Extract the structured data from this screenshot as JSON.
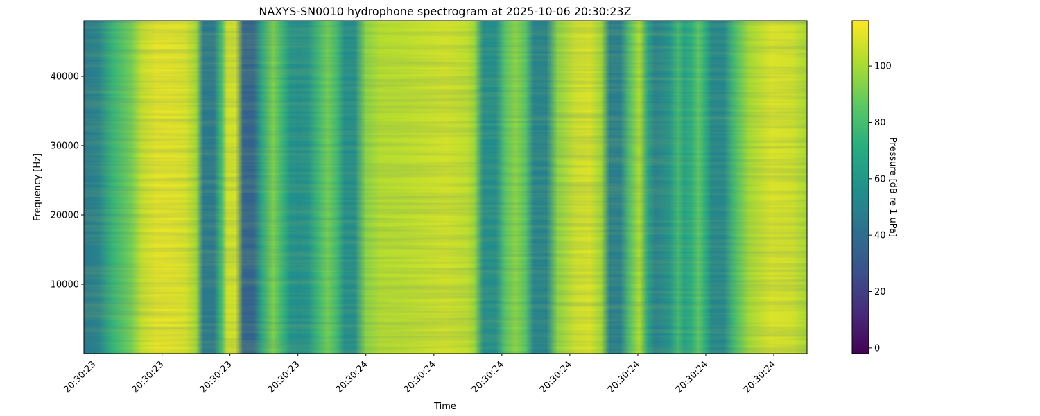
{
  "chart_data": {
    "type": "heatmap",
    "title": "NAXYS-SN0010 hydrophone spectrogram at 2025-10-06 20:30:23Z",
    "xlabel": "Time",
    "ylabel": "Frequency [Hz]",
    "colorbar_label": "Pressure [dB re 1 uPa]",
    "colormap": "viridis",
    "ylim": [
      0,
      48000
    ],
    "clim": [
      -2,
      116
    ],
    "x_tick_labels": [
      "20:30:23",
      "20:30:23",
      "20:30:23",
      "20:30:23",
      "20:30:24",
      "20:30:24",
      "20:30:24",
      "20:30:24",
      "20:30:24",
      "20:30:24",
      "20:30:24"
    ],
    "x_tick_fractions": [
      0.014,
      0.108,
      0.202,
      0.296,
      0.39,
      0.484,
      0.578,
      0.672,
      0.766,
      0.86,
      0.954
    ],
    "y_ticks": [
      10000,
      20000,
      30000,
      40000
    ],
    "y_tick_labels": [
      "10000",
      "20000",
      "30000",
      "40000"
    ],
    "colorbar_ticks": [
      0,
      20,
      40,
      60,
      80,
      100
    ],
    "colorbar_tick_labels": [
      "0",
      "20",
      "40",
      "60",
      "80",
      "100"
    ],
    "time_profile": [
      [
        0.0,
        45
      ],
      [
        0.02,
        50
      ],
      [
        0.04,
        75
      ],
      [
        0.065,
        90
      ],
      [
        0.08,
        106
      ],
      [
        0.1,
        112
      ],
      [
        0.12,
        112
      ],
      [
        0.14,
        110
      ],
      [
        0.155,
        100
      ],
      [
        0.165,
        45
      ],
      [
        0.18,
        45
      ],
      [
        0.19,
        78
      ],
      [
        0.198,
        108
      ],
      [
        0.21,
        108
      ],
      [
        0.22,
        35
      ],
      [
        0.235,
        35
      ],
      [
        0.245,
        65
      ],
      [
        0.262,
        92
      ],
      [
        0.275,
        75
      ],
      [
        0.285,
        58
      ],
      [
        0.297,
        55
      ],
      [
        0.31,
        58
      ],
      [
        0.325,
        78
      ],
      [
        0.337,
        90
      ],
      [
        0.35,
        78
      ],
      [
        0.36,
        55
      ],
      [
        0.375,
        55
      ],
      [
        0.39,
        95
      ],
      [
        0.41,
        103
      ],
      [
        0.44,
        104
      ],
      [
        0.47,
        106
      ],
      [
        0.5,
        108
      ],
      [
        0.53,
        105
      ],
      [
        0.54,
        98
      ],
      [
        0.552,
        55
      ],
      [
        0.57,
        55
      ],
      [
        0.583,
        85
      ],
      [
        0.597,
        95
      ],
      [
        0.61,
        85
      ],
      [
        0.622,
        50
      ],
      [
        0.64,
        50
      ],
      [
        0.655,
        95
      ],
      [
        0.68,
        108
      ],
      [
        0.7,
        110
      ],
      [
        0.715,
        100
      ],
      [
        0.727,
        48
      ],
      [
        0.742,
        48
      ],
      [
        0.756,
        85
      ],
      [
        0.768,
        102
      ],
      [
        0.78,
        65
      ],
      [
        0.79,
        48
      ],
      [
        0.81,
        58
      ],
      [
        0.822,
        78
      ],
      [
        0.83,
        65
      ],
      [
        0.84,
        72
      ],
      [
        0.85,
        85
      ],
      [
        0.86,
        70
      ],
      [
        0.868,
        52
      ],
      [
        0.885,
        52
      ],
      [
        0.9,
        80
      ],
      [
        0.92,
        100
      ],
      [
        0.95,
        110
      ],
      [
        0.98,
        108
      ],
      [
        1.0,
        100
      ]
    ]
  }
}
